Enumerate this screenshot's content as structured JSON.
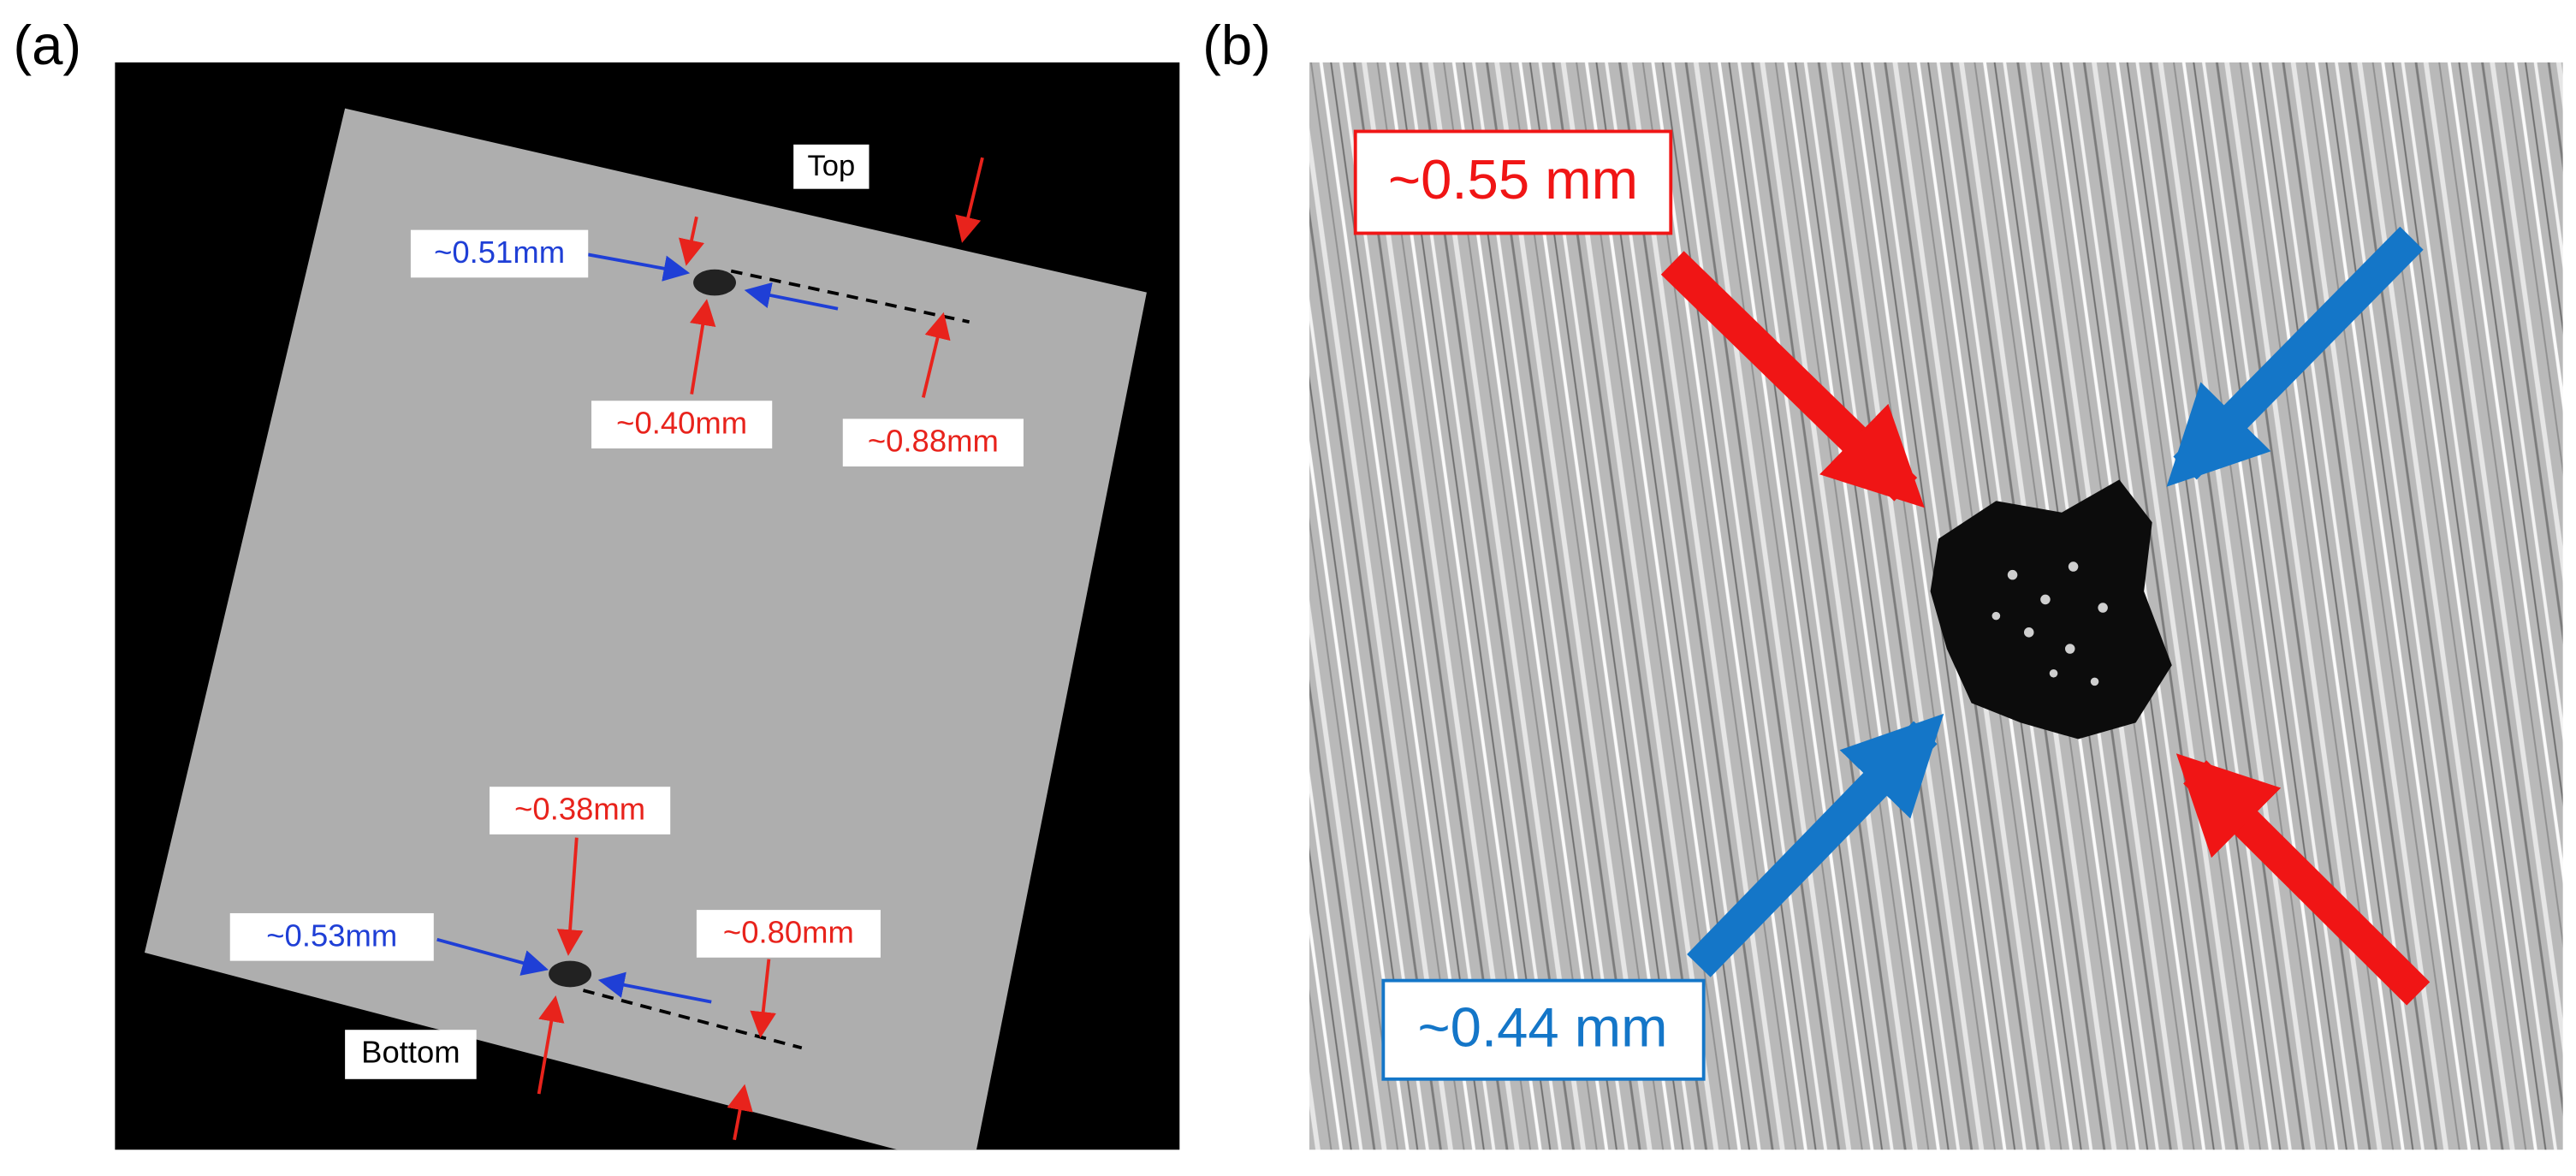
{
  "panels": [
    {
      "label": "(a)",
      "annotations": {
        "top": "Top",
        "bottom": "Bottom",
        "top_width": "~0.51mm",
        "top_height": "~0.40mm",
        "top_depth": "~0.88mm",
        "bottom_height": "~0.38mm",
        "bottom_width": "~0.53mm",
        "bottom_depth": "~0.80mm"
      }
    },
    {
      "label": "(b)",
      "annotations": {
        "red": "~0.55 mm",
        "blue": "~0.44 mm"
      }
    }
  ]
}
